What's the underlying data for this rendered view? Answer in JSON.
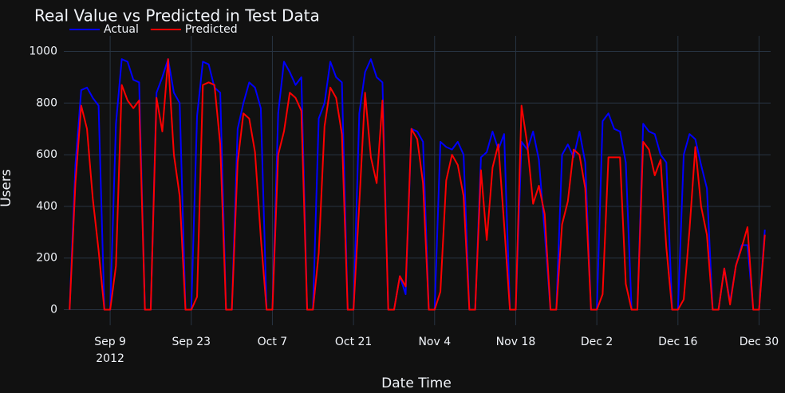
{
  "chart_data": {
    "type": "line",
    "title": "Real Value vs Predicted in Test Data",
    "x_label": "Date Time",
    "y_label": "Users",
    "x": [
      "2012-09-02",
      "2012-09-03",
      "2012-09-04",
      "2012-09-05",
      "2012-09-06",
      "2012-09-07",
      "2012-09-08",
      "2012-09-09",
      "2012-09-10",
      "2012-09-11",
      "2012-09-12",
      "2012-09-13",
      "2012-09-14",
      "2012-09-15",
      "2012-09-16",
      "2012-09-17",
      "2012-09-18",
      "2012-09-19",
      "2012-09-20",
      "2012-09-21",
      "2012-09-22",
      "2012-09-23",
      "2012-09-24",
      "2012-09-25",
      "2012-09-26",
      "2012-09-27",
      "2012-09-28",
      "2012-09-29",
      "2012-09-30",
      "2012-10-01",
      "2012-10-02",
      "2012-10-03",
      "2012-10-04",
      "2012-10-05",
      "2012-10-06",
      "2012-10-07",
      "2012-10-08",
      "2012-10-09",
      "2012-10-10",
      "2012-10-11",
      "2012-10-12",
      "2012-10-13",
      "2012-10-14",
      "2012-10-15",
      "2012-10-16",
      "2012-10-17",
      "2012-10-18",
      "2012-10-19",
      "2012-10-20",
      "2012-10-21",
      "2012-10-22",
      "2012-10-23",
      "2012-10-24",
      "2012-10-25",
      "2012-10-26",
      "2012-10-27",
      "2012-10-28",
      "2012-10-29",
      "2012-10-30",
      "2012-10-31",
      "2012-11-01",
      "2012-11-02",
      "2012-11-03",
      "2012-11-04",
      "2012-11-05",
      "2012-11-06",
      "2012-11-07",
      "2012-11-08",
      "2012-11-09",
      "2012-11-10",
      "2012-11-11",
      "2012-11-12",
      "2012-11-13",
      "2012-11-14",
      "2012-11-15",
      "2012-11-16",
      "2012-11-17",
      "2012-11-18",
      "2012-11-19",
      "2012-11-20",
      "2012-11-21",
      "2012-11-22",
      "2012-11-23",
      "2012-11-24",
      "2012-11-25",
      "2012-11-26",
      "2012-11-27",
      "2012-11-28",
      "2012-11-29",
      "2012-11-30",
      "2012-12-01",
      "2012-12-02",
      "2012-12-03",
      "2012-12-04",
      "2012-12-05",
      "2012-12-06",
      "2012-12-07",
      "2012-12-08",
      "2012-12-09",
      "2012-12-10",
      "2012-12-11",
      "2012-12-12",
      "2012-12-13",
      "2012-12-14",
      "2012-12-15",
      "2012-12-16",
      "2012-12-17",
      "2012-12-18",
      "2012-12-19",
      "2012-12-20",
      "2012-12-21",
      "2012-12-22",
      "2012-12-23",
      "2012-12-24",
      "2012-12-25",
      "2012-12-26",
      "2012-12-27",
      "2012-12-28",
      "2012-12-29",
      "2012-12-30",
      "2012-12-31"
    ],
    "series": [
      {
        "name": "Actual",
        "color": "#0000ff",
        "values": [
          0,
          560,
          850,
          860,
          820,
          790,
          0,
          0,
          720,
          970,
          960,
          890,
          880,
          0,
          0,
          840,
          900,
          970,
          840,
          800,
          0,
          0,
          750,
          960,
          950,
          860,
          840,
          0,
          0,
          700,
          800,
          880,
          860,
          780,
          0,
          0,
          760,
          960,
          920,
          870,
          900,
          0,
          0,
          740,
          800,
          960,
          900,
          880,
          0,
          0,
          760,
          920,
          970,
          900,
          880,
          0,
          0,
          130,
          60,
          700,
          690,
          650,
          0,
          0,
          650,
          630,
          620,
          650,
          600,
          0,
          0,
          590,
          610,
          690,
          620,
          680,
          0,
          0,
          650,
          620,
          690,
          580,
          300,
          0,
          0,
          600,
          640,
          590,
          690,
          570,
          0,
          0,
          730,
          760,
          700,
          690,
          570,
          0,
          0,
          720,
          690,
          680,
          600,
          570,
          0,
          0,
          600,
          680,
          660,
          560,
          470,
          0,
          0,
          160,
          30,
          170,
          250,
          250,
          0,
          0,
          310
        ]
      },
      {
        "name": "Predicted",
        "color": "#ff0000",
        "values": [
          0,
          490,
          790,
          700,
          430,
          230,
          0,
          0,
          170,
          870,
          810,
          780,
          810,
          0,
          0,
          820,
          690,
          970,
          600,
          440,
          0,
          0,
          50,
          870,
          880,
          870,
          640,
          0,
          0,
          570,
          760,
          740,
          610,
          280,
          0,
          0,
          600,
          690,
          840,
          820,
          770,
          0,
          0,
          220,
          710,
          860,
          820,
          680,
          0,
          0,
          410,
          840,
          590,
          490,
          810,
          0,
          0,
          130,
          90,
          700,
          660,
          490,
          0,
          0,
          70,
          500,
          600,
          560,
          440,
          0,
          0,
          540,
          270,
          550,
          640,
          330,
          0,
          0,
          790,
          640,
          410,
          480,
          370,
          0,
          0,
          330,
          420,
          620,
          600,
          470,
          0,
          0,
          60,
          590,
          590,
          590,
          100,
          0,
          0,
          650,
          620,
          520,
          580,
          240,
          0,
          0,
          40,
          310,
          630,
          400,
          290,
          0,
          0,
          160,
          20,
          170,
          240,
          320,
          0,
          0,
          290
        ]
      }
    ],
    "xlim": [
      "2012-09-01",
      "2013-01-01"
    ],
    "xticks": [
      {
        "value": "2012-09-09",
        "label": "Sep 9"
      },
      {
        "value": "2012-09-23",
        "label": "Sep 23"
      },
      {
        "value": "2012-10-07",
        "label": "Oct 7"
      },
      {
        "value": "2012-10-21",
        "label": "Oct 21"
      },
      {
        "value": "2012-11-04",
        "label": "Nov 4"
      },
      {
        "value": "2012-11-18",
        "label": "Nov 18"
      },
      {
        "value": "2012-12-02",
        "label": "Dec 2"
      },
      {
        "value": "2012-12-16",
        "label": "Dec 16"
      },
      {
        "value": "2012-12-30",
        "label": "Dec 30"
      }
    ],
    "x_year_label": "2012",
    "ylim": [
      -60,
      1060
    ],
    "yticks": [
      0,
      200,
      400,
      600,
      800,
      1000
    ],
    "grid": true,
    "legend": "top-left"
  }
}
